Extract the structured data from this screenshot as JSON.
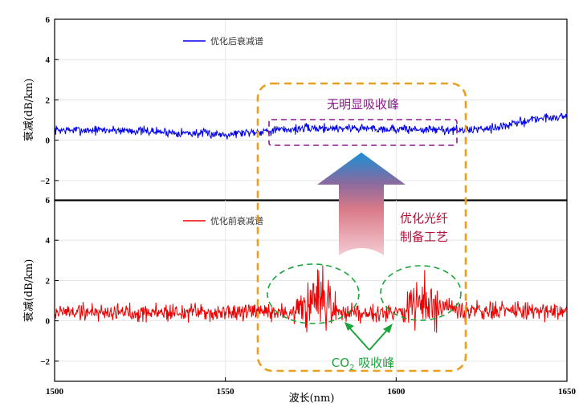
{
  "chart_data": [
    {
      "type": "line",
      "panel": "top",
      "xlabel": "",
      "ylabel": "衰减(dB/km)",
      "xlim": [
        1500,
        1650
      ],
      "ylim": [
        -3,
        6
      ],
      "yticks": [
        -2,
        0,
        2,
        4,
        6
      ],
      "xticks": [
        1500,
        1550,
        1600,
        1650
      ],
      "grid": true,
      "legend": "top-left",
      "series": [
        {
          "name": "优化后衰减谱",
          "color": "#0000ee",
          "baseline": [
            [
              1500,
              0.5
            ],
            [
              1520,
              0.5
            ],
            [
              1540,
              0.35
            ],
            [
              1550,
              0.3
            ],
            [
              1560,
              0.45
            ],
            [
              1575,
              0.6
            ],
            [
              1590,
              0.6
            ],
            [
              1600,
              0.55
            ],
            [
              1620,
              0.5
            ],
            [
              1632,
              0.7
            ],
            [
              1640,
              1.05
            ],
            [
              1650,
              1.2
            ]
          ],
          "noise": 0.16
        }
      ]
    },
    {
      "type": "line",
      "panel": "bottom",
      "xlabel": "波长(nm)",
      "ylabel": "衰减(dB/km)",
      "xlim": [
        1500,
        1650
      ],
      "ylim": [
        -3,
        6
      ],
      "yticks": [
        -2,
        0,
        2,
        4,
        6
      ],
      "xticks": [
        1500,
        1550,
        1600,
        1650
      ],
      "xticklabels": [
        "1500",
        "1550",
        "1600",
        "1650"
      ],
      "grid": true,
      "legend": "top-left",
      "series": [
        {
          "name": "优化前衰减谱",
          "color": "#ee0000",
          "baseline": [
            [
              1500,
              0.45
            ],
            [
              1560,
              0.4
            ],
            [
              1600,
              0.45
            ],
            [
              1650,
              0.5
            ]
          ],
          "noise": 0.32,
          "peaks": [
            {
              "center": 1577,
              "width": 4.5,
              "height": 1.0
            },
            {
              "center": 1608,
              "width": 5.0,
              "height": 0.95
            }
          ]
        }
      ]
    }
  ],
  "annotations": {
    "no_peak": "无明显吸收峰",
    "process_line1": "优化光纤",
    "process_line2": "制备工艺",
    "co2_prefix": "CO",
    "co2_sub": "2",
    "co2_suffix": " 吸收峰"
  },
  "colors": {
    "box_orange": "#e8a01e",
    "purple": "#8b1a8b",
    "green": "#1aa53a",
    "process_red": "#b0103a"
  }
}
